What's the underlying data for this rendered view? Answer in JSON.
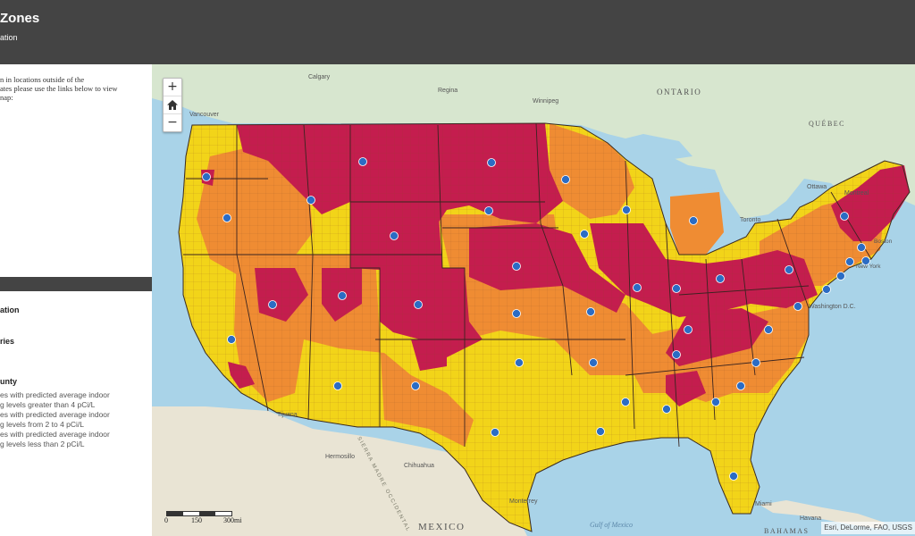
{
  "header": {
    "title": "Zones",
    "subtitle": "ation"
  },
  "panel": {
    "intro_lines": [
      "n in locations outside of the",
      "ates please use the links below to view",
      "nap:"
    ],
    "legend_headings": [
      "ation",
      "ries",
      "unty"
    ],
    "legend_lines": [
      "es with predicted average indoor",
      "g levels greater than 4 pCi/L",
      "es with predicted average indoor",
      "g levels from 2 to 4 pCi/L",
      "es with predicted average indoor",
      "g levels less than 2 pCi/L"
    ]
  },
  "map": {
    "zoom_controls": {
      "zoom_in": "+",
      "home": "home-icon",
      "zoom_out": "−"
    },
    "zone_colors": {
      "zone_1": "#c41d4e",
      "zone_2": "#ef8c33",
      "zone_3": "#f2d419"
    },
    "labels": {
      "ontario": "ONTARIO",
      "quebec": "QUÉBEC",
      "mexico": "MEXICO",
      "bahamas": "BAHAMAS",
      "gulf": "Gulf of Mexico",
      "calgary": "Calgary",
      "regina": "Regina",
      "winnipeg": "Winnipeg",
      "vancouver": "Vancouver",
      "ottawa": "Ottawa",
      "montreal": "Montreal",
      "toronto": "Toronto",
      "tijuana": "Tijuana",
      "hermosillo": "Hermosillo",
      "chihuahua": "Chihuahua",
      "monterrey": "Monterrey",
      "havana": "Havana",
      "miami": "Miami",
      "washington": "Washington D.C.",
      "new_york": "New York",
      "boston": "Boston",
      "sierra": "SIERRA MADRE OCCIDENTAL"
    },
    "scale": {
      "zero": "0",
      "mid": "150",
      "end": "300mi"
    },
    "attribution": "Esri, DeLorme, FAO, USGS"
  }
}
